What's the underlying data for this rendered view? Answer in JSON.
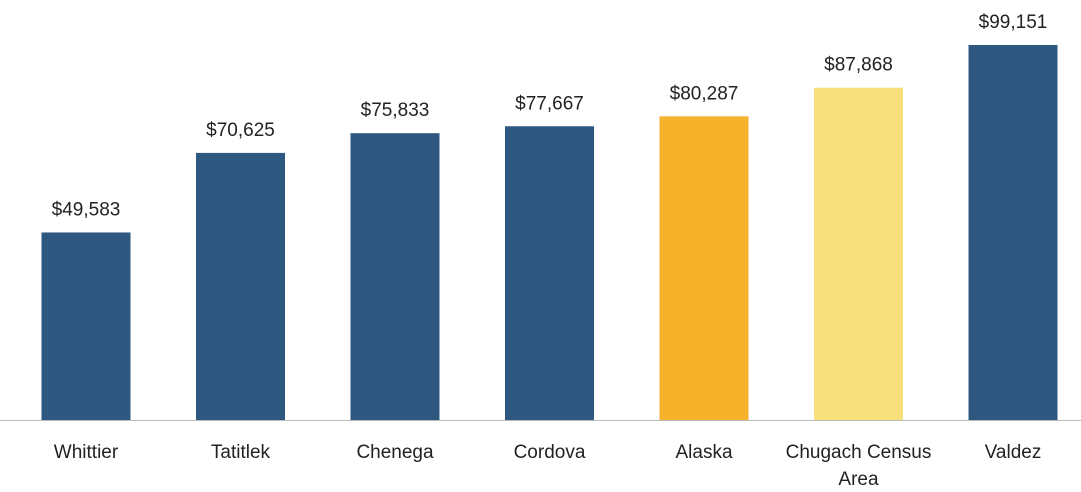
{
  "chart_data": {
    "type": "bar",
    "categories": [
      "Whittier",
      "Tatitlek",
      "Chenega",
      "Cordova",
      "Alaska",
      "Chugach Census Area",
      "Valdez"
    ],
    "values": [
      49583,
      70625,
      75833,
      77667,
      80287,
      87868,
      99151
    ],
    "value_labels": [
      "$49,583",
      "$70,625",
      "$75,833",
      "$77,667",
      "$80,287",
      "$87,868",
      "$99,151"
    ],
    "colors": [
      "#2e5880",
      "#2e5880",
      "#2e5880",
      "#2e5880",
      "#f6b22b",
      "#f7e07c",
      "#2e5880"
    ]
  }
}
